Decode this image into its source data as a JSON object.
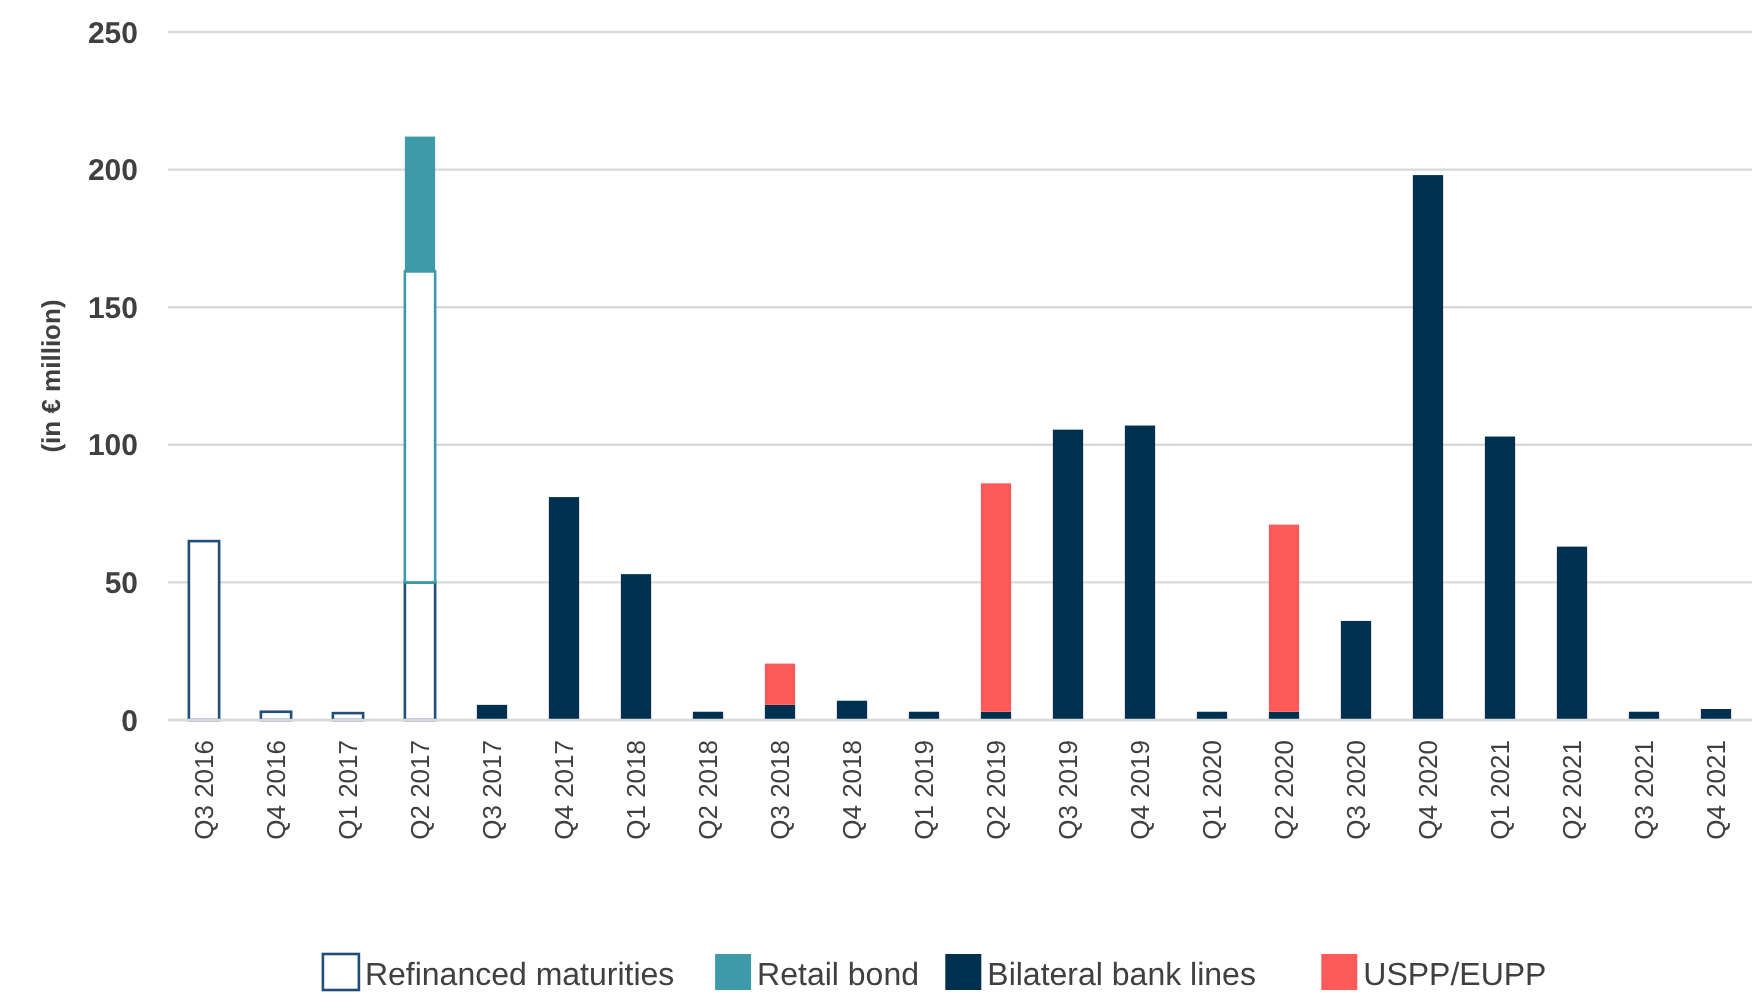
{
  "chart_data": {
    "type": "bar",
    "stacked": true,
    "ylabel": "(in € million)",
    "categories": [
      "Q3 2016",
      "Q4 2016",
      "Q1 2017",
      "Q2 2017",
      "Q3 2017",
      "Q4 2017",
      "Q1 2018",
      "Q2 2018",
      "Q3 2018",
      "Q4 2018",
      "Q1 2019",
      "Q2 2019",
      "Q3 2019",
      "Q4 2019",
      "Q1 2020",
      "Q2 2020",
      "Q3 2020",
      "Q4 2020",
      "Q1 2021",
      "Q2 2021",
      "Q3 2021",
      "Q4 2021"
    ],
    "series": [
      {
        "name": "Refinanced maturities",
        "color": "#ffffff",
        "values": [
          65,
          3,
          2.5,
          50,
          0,
          0,
          0,
          0,
          0,
          0,
          0,
          0,
          0,
          0,
          0,
          0,
          0,
          0,
          0,
          0,
          0,
          0
        ]
      },
      {
        "color": "#ffffff",
        "values": [
          0,
          0,
          0,
          113,
          0,
          0,
          0,
          0,
          0,
          0,
          0,
          0,
          0,
          0,
          0,
          0,
          0,
          0,
          0,
          0,
          0,
          0
        ]
      },
      {
        "name": "Retail bond",
        "color": "#3e9aa8",
        "values": [
          0,
          0,
          0,
          49,
          0,
          0,
          0,
          0,
          0,
          0,
          0,
          0,
          0,
          0,
          0,
          0,
          0,
          0,
          0,
          0,
          0,
          0
        ]
      },
      {
        "name": "Bilateral bank lines",
        "color": "#00304f",
        "values": [
          0,
          0,
          0,
          0,
          5.5,
          81,
          53,
          3,
          5.5,
          7,
          3,
          3,
          105.5,
          107,
          3,
          3,
          36,
          198,
          103,
          63,
          3,
          4
        ]
      },
      {
        "name": "USPP/EUPP",
        "color": "#ff5a5a",
        "values": [
          0,
          0,
          0,
          0,
          0,
          0,
          0,
          0,
          15,
          0,
          0,
          83,
          0,
          0,
          0,
          68,
          0,
          0,
          0,
          0,
          0,
          0
        ]
      }
    ],
    "ylim": [
      0,
      250
    ],
    "yticks": [
      0,
      50,
      100,
      150,
      200,
      250
    ],
    "grid": "y",
    "legend": "bottom"
  }
}
